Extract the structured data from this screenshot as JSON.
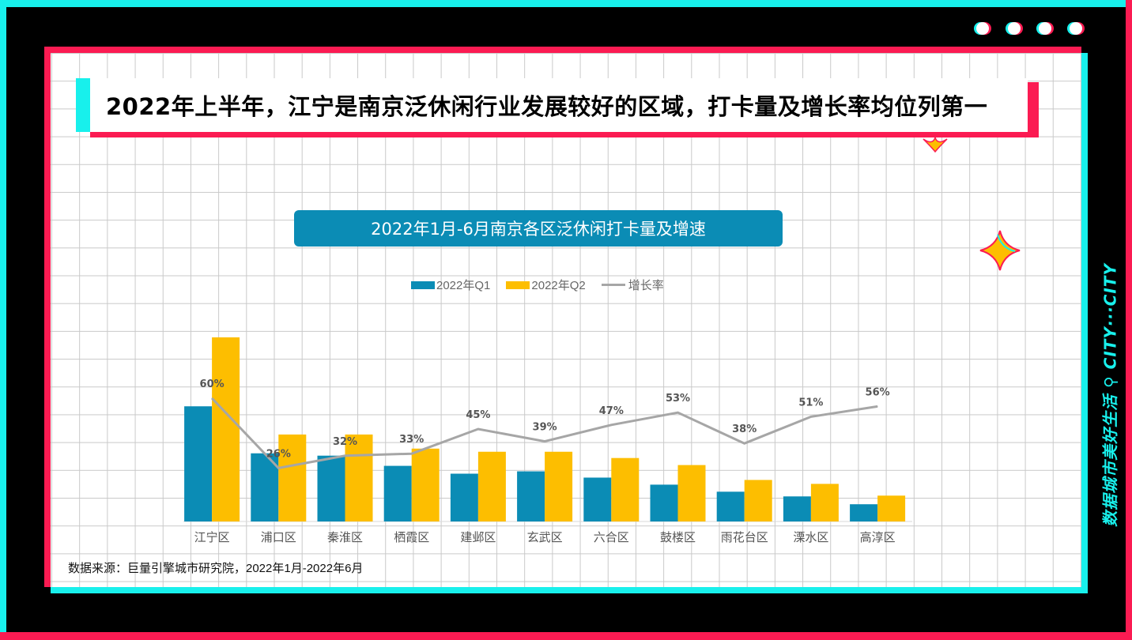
{
  "page": {
    "headline": "2022年上半年，江宁是南京泛休闲行业发展较好的区域，打卡量及增长率均位列第一",
    "side_label": "数据城市美好生活 ⚲ CITY···CITY",
    "source_note": "数据来源：巨量引擎城市研究院，2022年1月-2022年6月"
  },
  "colors": {
    "q1": "#0b8cb5",
    "q2": "#fdbe00",
    "rate": "#a6a6a6",
    "cyan": "#18f0ec",
    "pink": "#fb1b52"
  },
  "chart_data": {
    "type": "bar",
    "title": "2022年1月-6月南京各区泛休闲打卡量及增速",
    "categories": [
      "江宁区",
      "浦口区",
      "秦淮区",
      "栖霞区",
      "建邺区",
      "玄武区",
      "六合区",
      "鼓楼区",
      "雨花台区",
      "溧水区",
      "高淳区"
    ],
    "series": [
      {
        "name": "2022年Q1",
        "values": [
          147,
          87,
          84,
          71,
          61,
          64,
          56,
          47,
          38,
          32,
          22
        ]
      },
      {
        "name": "2022年Q2",
        "values": [
          235,
          111,
          111,
          93,
          89,
          89,
          81,
          72,
          53,
          48,
          33
        ]
      },
      {
        "name": "增长率",
        "type": "line",
        "unit": "%",
        "values": [
          60,
          26,
          32,
          33,
          45,
          39,
          47,
          53,
          38,
          51,
          56
        ],
        "labels": [
          "60%",
          "26%",
          "32%",
          "33%",
          "45%",
          "39%",
          "47%",
          "53%",
          "38%",
          "51%",
          "56%"
        ]
      }
    ],
    "xlabel": "",
    "ylabel": "",
    "ylim": [
      0,
      240
    ],
    "ylim_rate": [
      0,
      100
    ],
    "legend": "top",
    "grid": false
  }
}
